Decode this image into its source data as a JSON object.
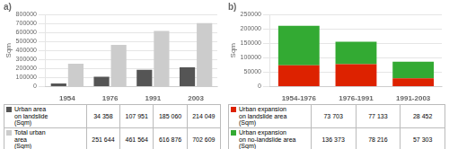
{
  "chart_data": [
    {
      "type": "bar",
      "title": "a)",
      "categories": [
        "1954",
        "1976",
        "1991",
        "2003"
      ],
      "series": [
        {
          "name": "Urban area\non landslide\n(Sqm)",
          "color": "#555555",
          "values": [
            34358,
            107951,
            185060,
            214049
          ],
          "value_labels": [
            "34 358",
            "107 951",
            "185 060",
            "214 049"
          ]
        },
        {
          "name": "Total urban\narea\n(Sqm)",
          "color": "#cccccc",
          "values": [
            251644,
            461564,
            616876,
            702609
          ],
          "value_labels": [
            "251 644",
            "461 564",
            "616 876",
            "702 609"
          ]
        }
      ],
      "ylabel": "Sqm",
      "ylim": [
        0,
        800000
      ],
      "yticks": [
        0,
        100000,
        200000,
        300000,
        400000,
        500000,
        600000,
        700000,
        800000
      ],
      "grid": true,
      "data_labels": true
    },
    {
      "type": "bar",
      "title": "b)",
      "categories": [
        "1954-1976",
        "1976-1991",
        "1991-2003"
      ],
      "series": [
        {
          "name": "Urban expansion\non landslide area\n(Sqm)",
          "color": "#dd2200",
          "values": [
            73703,
            77133,
            28452
          ],
          "value_labels": [
            "73 703",
            "77 133",
            "28 452"
          ]
        },
        {
          "name": "Urban expansion\non no-landslide area\n(Sqm)",
          "color": "#33aa33",
          "values": [
            136373,
            78216,
            57303
          ],
          "value_labels": [
            "136 373",
            "78 216",
            "57 303"
          ]
        }
      ],
      "ylabel": "Sqm",
      "ylim": [
        0,
        250000
      ],
      "yticks": [
        0,
        50000,
        100000,
        150000,
        200000,
        250000
      ],
      "grid": true,
      "stacked": true,
      "data_labels": true
    }
  ]
}
